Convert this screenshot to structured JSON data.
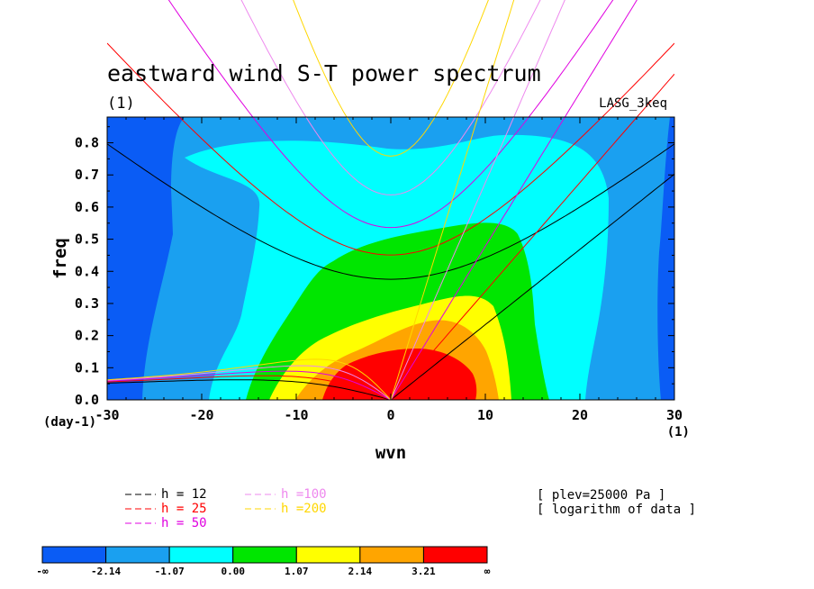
{
  "chart_data": {
    "type": "heatmap",
    "title": "eastward wind S-T power spectrum",
    "subtitle": "(1)",
    "model_label": "LASG_3keq",
    "xlabel": "wvn",
    "ylabel": "freq",
    "x_unit_label": "(1)",
    "y_unit_label": "(day-1)",
    "xlim": [
      -30,
      30
    ],
    "ylim": [
      0,
      0.88
    ],
    "x_ticks": [
      -30,
      -20,
      -10,
      0,
      10,
      20,
      30
    ],
    "x_tick_labels": [
      "-30",
      "-20",
      "-10",
      "0",
      "10",
      "20",
      "30"
    ],
    "y_ticks": [
      0,
      0.1,
      0.2,
      0.3,
      0.4,
      0.5,
      0.6,
      0.7,
      0.8
    ],
    "y_tick_labels": [
      "0.0",
      "0.1",
      "0.2",
      "0.3",
      "0.4",
      "0.5",
      "0.6",
      "0.7",
      "0.8"
    ],
    "color_levels": [
      "-∞",
      "-2.14",
      "-1.07",
      "0.00",
      "1.07",
      "2.14",
      "3.21",
      "∞"
    ],
    "colors": [
      "#0a5cf5",
      "#1aa0f0",
      "#00ffff",
      "#00e600",
      "#ffff00",
      "#ffa500",
      "#ff0000"
    ],
    "dispersion_curves": [
      {
        "label": "h = 12",
        "color": "#000000"
      },
      {
        "label": "h = 25",
        "color": "#ff0000"
      },
      {
        "label": "h = 50",
        "color": "#e000e0"
      },
      {
        "label": "h =100",
        "color": "#ee88ee"
      },
      {
        "label": "h =200",
        "color": "#ffd700"
      }
    ],
    "annotations": [
      "[ plev=25000 Pa ]",
      "[ logarithm of data ]"
    ]
  }
}
